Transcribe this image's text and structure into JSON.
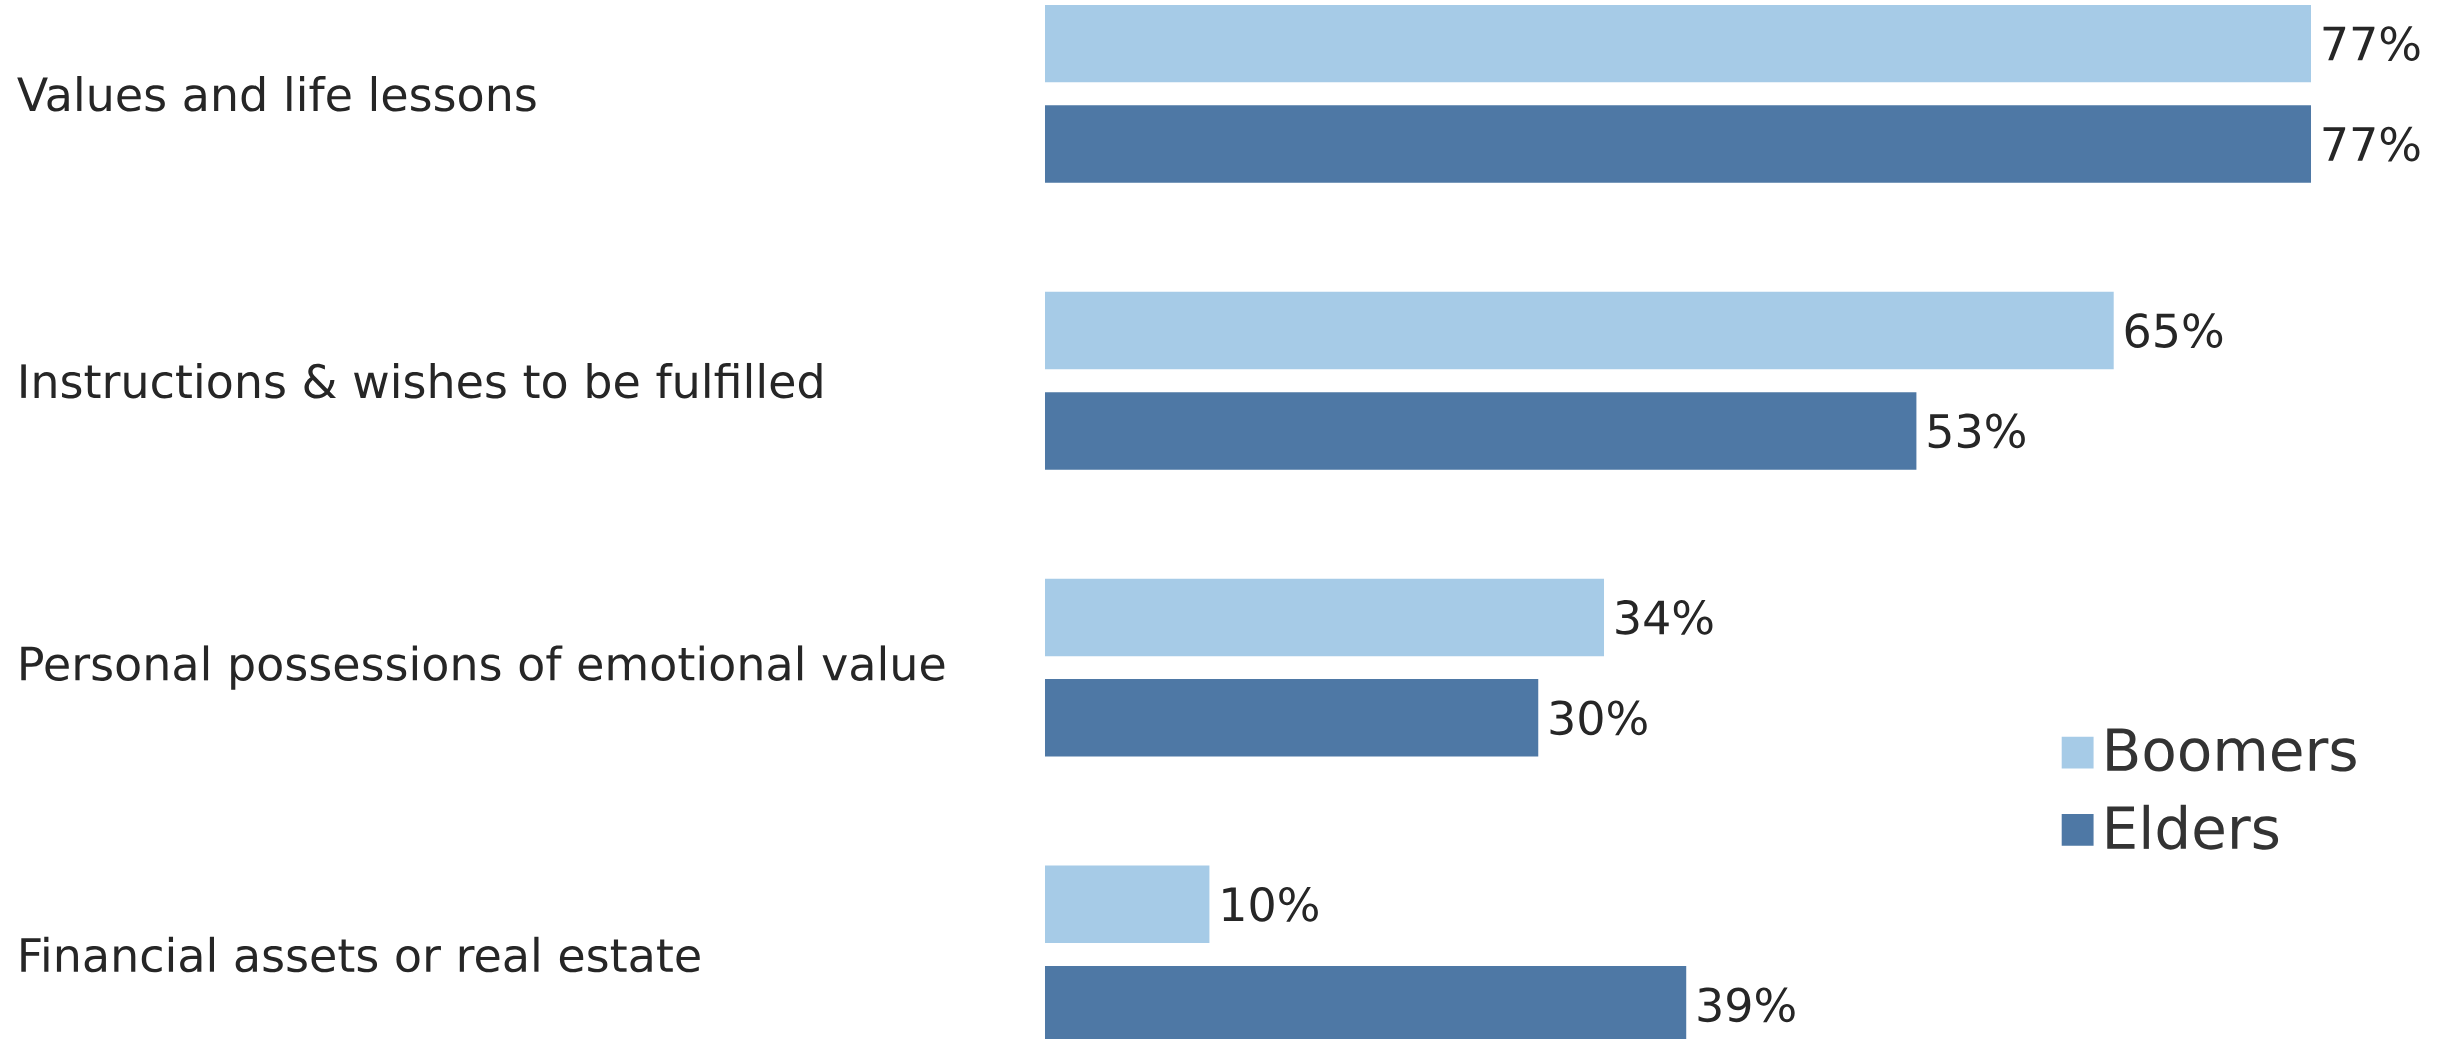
{
  "chart_data": {
    "type": "bar",
    "orientation": "horizontal",
    "categories": [
      "Values and life lessons",
      "Instructions & wishes to be fulfilled",
      "Personal possessions of emotional value",
      "Financial assets or real estate"
    ],
    "series": [
      {
        "name": "Boomers",
        "color": "#a6cbe7",
        "values": [
          77,
          65,
          34,
          10
        ],
        "value_labels": [
          "77%",
          "65%",
          "34%",
          "10%"
        ]
      },
      {
        "name": "Elders",
        "color": "#4e78a5",
        "values": [
          77,
          53,
          30,
          39
        ],
        "value_labels": [
          "77%",
          "53%",
          "30%",
          "39%"
        ]
      }
    ],
    "legend": "bottom right"
  }
}
